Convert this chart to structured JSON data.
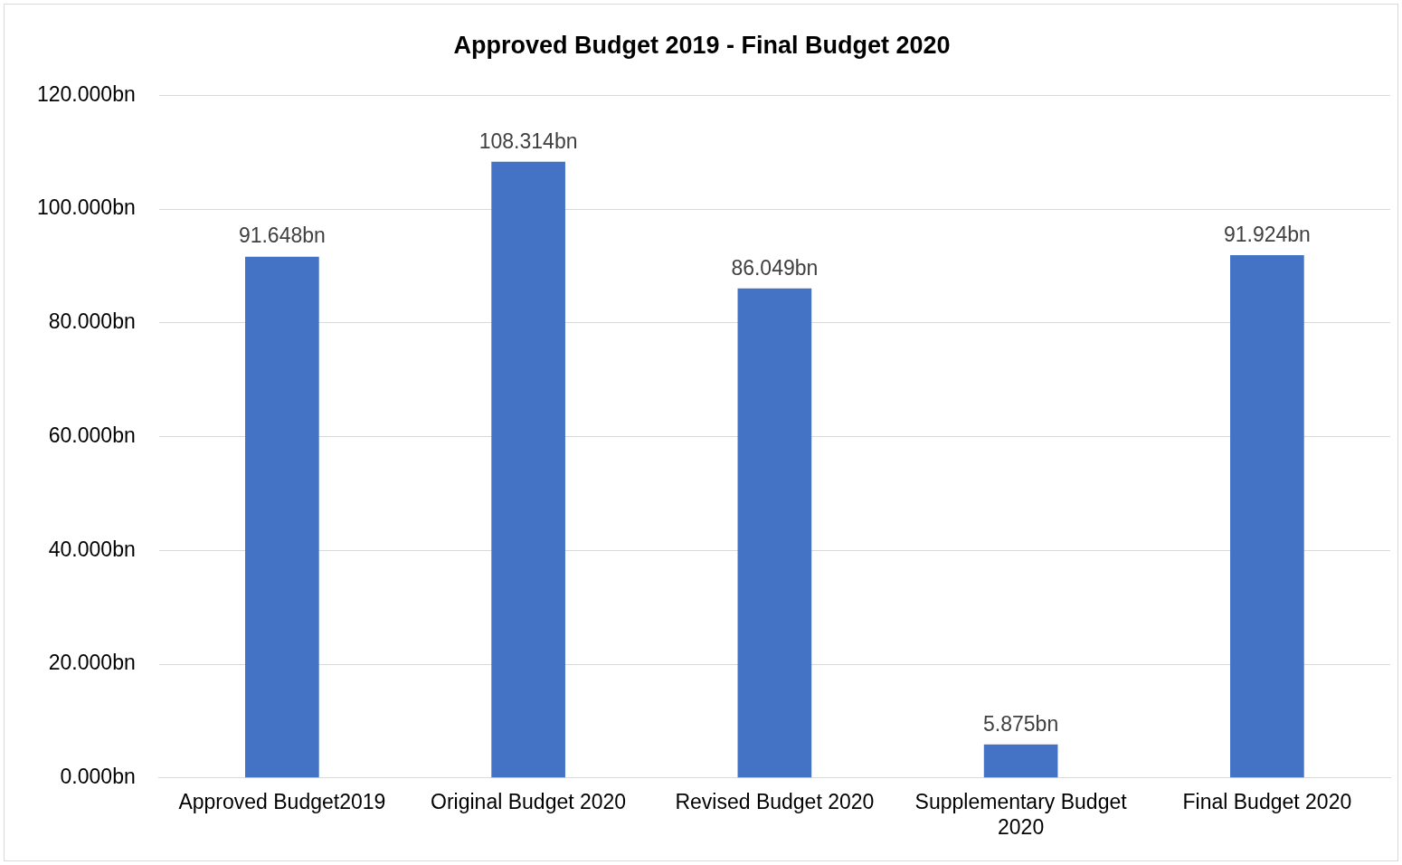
{
  "chart_data": {
    "type": "bar",
    "title": "Approved Budget 2019 - Final Budget 2020",
    "categories": [
      "Approved Budget2019",
      "Original Budget 2020",
      "Revised Budget 2020",
      "Supplementary Budget 2020",
      "Final Budget 2020"
    ],
    "values": [
      91.648,
      108.314,
      86.049,
      5.875,
      91.924
    ],
    "value_labels": [
      "91.648bn",
      "108.314bn",
      "86.049bn",
      "5.875bn",
      "91.924bn"
    ],
    "color": "#4472c4",
    "ylim": [
      0,
      120
    ],
    "yticks": [
      {
        "value": 0,
        "label": "0.000bn"
      },
      {
        "value": 20,
        "label": "20.000bn"
      },
      {
        "value": 40,
        "label": "40.000bn"
      },
      {
        "value": 60,
        "label": "60.000bn"
      },
      {
        "value": 80,
        "label": "80.000bn"
      },
      {
        "value": 100,
        "label": "100.000bn"
      },
      {
        "value": 120,
        "label": "120.000bn"
      }
    ],
    "grid": "y"
  }
}
